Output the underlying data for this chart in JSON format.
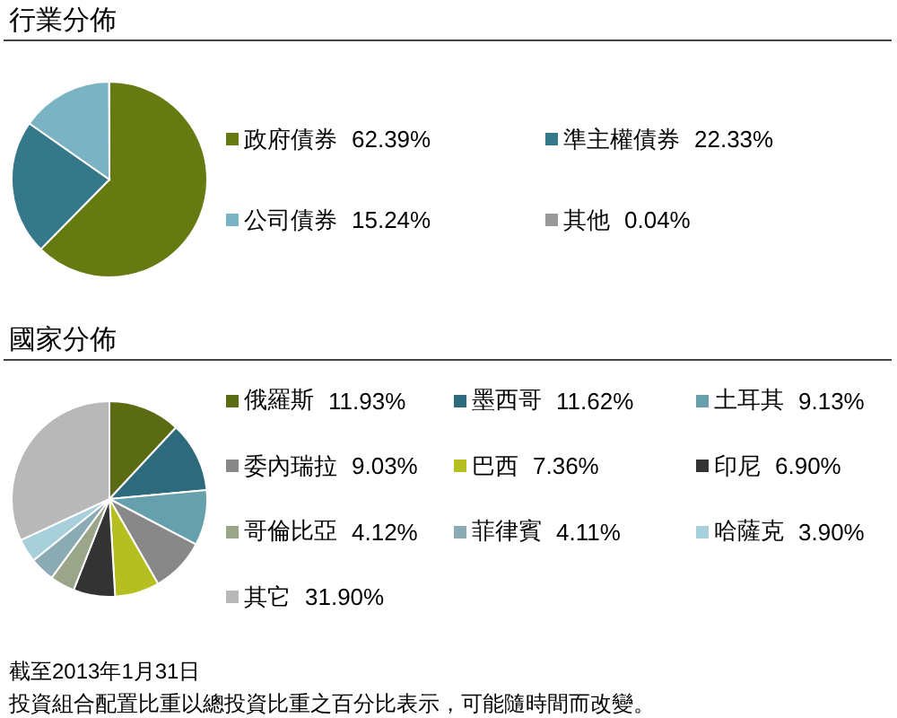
{
  "chart_data": [
    {
      "type": "pie",
      "title": "行業分佈",
      "categories": [
        "政府債券",
        "準主權債券",
        "公司債券",
        "其他"
      ],
      "values": [
        62.39,
        22.33,
        15.24,
        0.04
      ],
      "value_labels": [
        "62.39%",
        "22.33%",
        "15.24%",
        "0.04%"
      ],
      "colors": [
        "#667a12",
        "#35788a",
        "#7ab4c4",
        "#999999"
      ],
      "legend": "right"
    },
    {
      "type": "pie",
      "title": "國家分佈",
      "categories": [
        "俄羅斯",
        "墨西哥",
        "土耳其",
        "委內瑞拉",
        "巴西",
        "印尼",
        "哥倫比亞",
        "菲律賓",
        "哈薩克",
        "其它"
      ],
      "values": [
        11.93,
        11.62,
        9.13,
        9.03,
        7.36,
        6.9,
        4.12,
        4.11,
        3.9,
        31.9
      ],
      "value_labels": [
        "11.93%",
        "11.62%",
        "9.13%",
        "9.03%",
        "7.36%",
        "6.90%",
        "4.12%",
        "4.11%",
        "3.90%",
        "31.90%"
      ],
      "colors": [
        "#5a6b14",
        "#2d6b7c",
        "#66a0ac",
        "#888888",
        "#b5c020",
        "#333333",
        "#9aa58a",
        "#8aaab4",
        "#a8d0da",
        "#b8b8b8"
      ],
      "legend": "right",
      "annotations": [
        "截至2013年1月31日",
        "投資組合配置比重以總投資比重之百分比表示，可能隨時間而改變。"
      ]
    }
  ]
}
